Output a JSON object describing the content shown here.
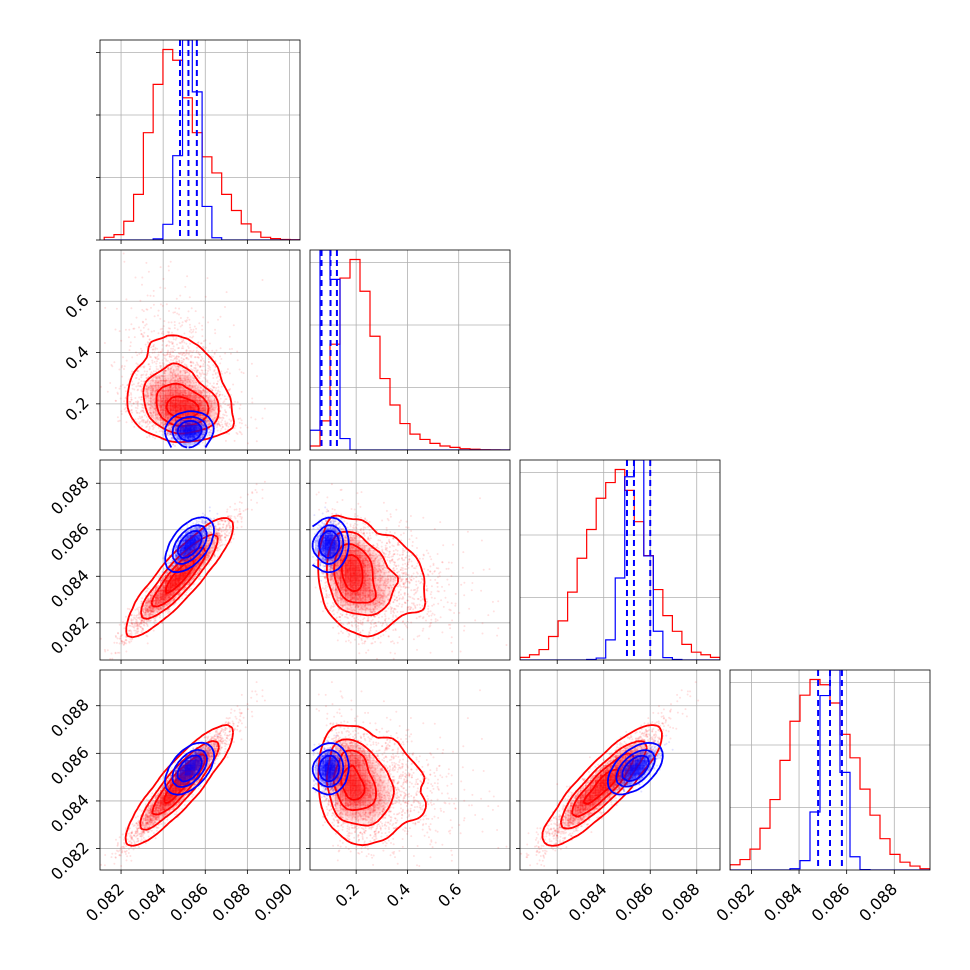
{
  "chart_data": {
    "type": "corner",
    "title": "",
    "grid": true,
    "colors": {
      "red": "#ff0000",
      "blue": "#0000ff"
    },
    "params": [
      {
        "name": "",
        "range": [
          0.081,
          0.0905
        ]
      },
      {
        "name": "",
        "range": [
          0.02,
          0.8
        ]
      },
      {
        "name": "",
        "range": [
          0.0804,
          0.089
        ]
      },
      {
        "name": "",
        "range": [
          0.0811,
          0.0895
        ]
      }
    ],
    "xticks": [
      [
        "0.082",
        "0.084",
        "0.086",
        "0.088",
        "0.090"
      ],
      [
        "0.2",
        "0.4",
        "0.6"
      ],
      [
        "0.082",
        "0.084",
        "0.086",
        "0.088"
      ],
      [
        "0.082",
        "0.084",
        "0.086",
        "0.088"
      ]
    ],
    "yticks": [
      [],
      [
        "0.2",
        "0.4",
        "0.6"
      ],
      [
        "0.082",
        "0.084",
        "0.086",
        "0.088"
      ],
      [
        "0.082",
        "0.084",
        "0.086",
        "0.088"
      ]
    ],
    "red": {
      "mean": [
        0.0848,
        0.22,
        0.084,
        0.0847
      ],
      "sd": [
        0.0012,
        0.1,
        0.0012,
        0.0012
      ],
      "corr": [
        [
          1,
          -0.2,
          0.95,
          0.95
        ],
        [
          -0.2,
          1,
          -0.25,
          -0.2
        ],
        [
          0.95,
          -0.25,
          1,
          0.93
        ],
        [
          0.95,
          -0.2,
          0.93,
          1
        ]
      ],
      "hist": [
        [
          0.0812,
          0.0905,
          [
            1,
            2,
            7,
            17,
            40,
            58,
            71,
            67,
            53,
            40,
            31,
            25,
            17,
            11,
            6,
            3,
            1,
            0.5,
            0.2,
            0.1
          ]
        ],
        [
          0.02,
          0.8,
          [
            1.5,
            11,
            40,
            65,
            72,
            60,
            43,
            27,
            17,
            10,
            6,
            4,
            2.5,
            1.5,
            1,
            0.5,
            0.3,
            0.1,
            0.05,
            0.02
          ]
        ],
        [
          0.0804,
          0.089,
          [
            1,
            2,
            4,
            9,
            15,
            26,
            39,
            50,
            62,
            68,
            73,
            65,
            53,
            40,
            27,
            17,
            11,
            6,
            3,
            2,
            1
          ]
        ],
        [
          0.0811,
          0.0895,
          [
            2,
            4,
            8,
            16,
            27,
            42,
            57,
            67,
            73,
            71,
            64,
            52,
            43,
            31,
            21,
            12,
            6,
            3,
            1.5,
            0.5
          ]
        ]
      ]
    },
    "blue": {
      "mean": [
        0.08525,
        0.095,
        0.08535,
        0.08535
      ],
      "sd": [
        0.00042,
        0.022,
        0.00048,
        0.00042
      ],
      "corr": [
        [
          1,
          0.1,
          0.8,
          0.8
        ],
        [
          0.1,
          1,
          0.05,
          0.05
        ],
        [
          0.8,
          0.05,
          1,
          0.75
        ],
        [
          0.8,
          0.05,
          0.75,
          1
        ]
      ],
      "quantiles": [
        [
          0.0848,
          0.0852,
          0.0856
        ],
        [
          0.065,
          0.1,
          0.125
        ],
        [
          0.085,
          0.0853,
          0.086
        ],
        [
          0.0848,
          0.0853,
          0.0858
        ]
      ]
    }
  }
}
